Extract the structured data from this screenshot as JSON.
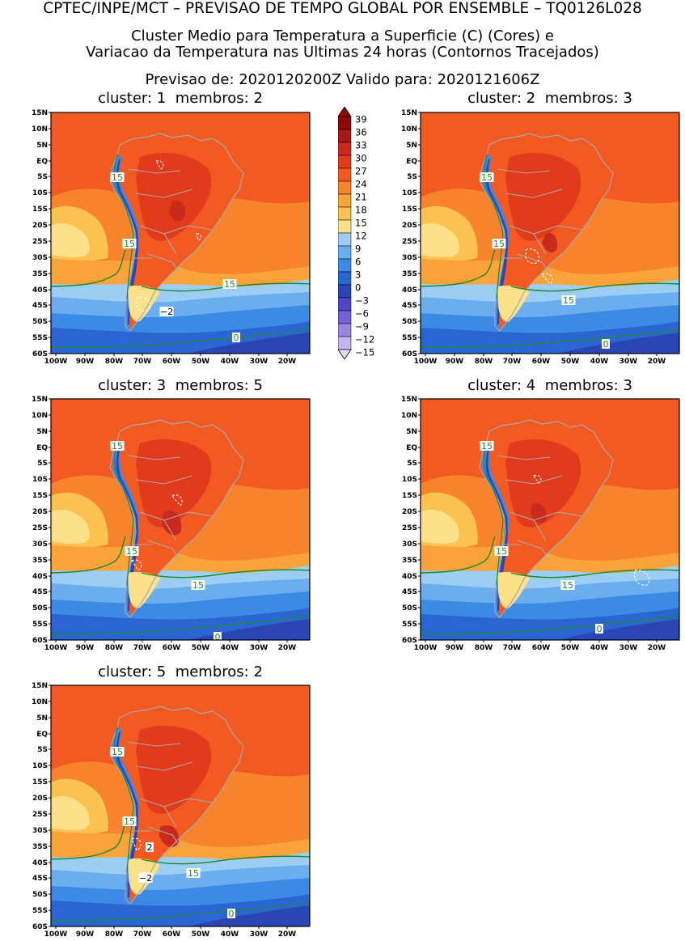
{
  "header": {
    "main_title": "CPTEC/INPE/MCT – PREVISAO DE TEMPO GLOBAL POR ENSEMBLE – TQ0126L028",
    "line1": "Cluster Medio para Temperatura a Superficie (C) (Cores) e",
    "line2": "Variacao da Temperatura nas Ultimas 24 horas (Contornos Tracejados)",
    "line3": "Previsao de: 2020120200Z    Valido para: 2020121606Z"
  },
  "axes": {
    "lat_labels": [
      "15N",
      "10N",
      "5N",
      "EQ",
      "5S",
      "10S",
      "15S",
      "20S",
      "25S",
      "30S",
      "35S",
      "40S",
      "45S",
      "50S",
      "55S",
      "60S"
    ],
    "lon_labels": [
      "100W",
      "90W",
      "80W",
      "70W",
      "60W",
      "50W",
      "40W",
      "30W",
      "20W"
    ]
  },
  "colorbar": {
    "labels": [
      "39",
      "36",
      "33",
      "30",
      "27",
      "24",
      "21",
      "18",
      "15",
      "12",
      "9",
      "6",
      "3",
      "0",
      "−3",
      "−6",
      "−9",
      "−12",
      "−15"
    ],
    "colors": [
      "#8c0a0a",
      "#a81818",
      "#c82a1e",
      "#e23b1c",
      "#f25a22",
      "#f7842c",
      "#f9a33a",
      "#fbc252",
      "#fde08a",
      "#9ccdf2",
      "#6aaef0",
      "#3d8ae6",
      "#2a66d2",
      "#2a46b4",
      "#4f46c8",
      "#7461d4",
      "#9a88e0",
      "#c2b6ee",
      "#e2dcf7"
    ]
  },
  "panels": [
    {
      "cluster_label": "cluster:",
      "cluster": "1",
      "members_label": "membros:",
      "members": "2",
      "contour_labels": [
        "15",
        "15",
        "15",
        "−2",
        "0"
      ]
    },
    {
      "cluster_label": "cluster:",
      "cluster": "2",
      "members_label": "membros:",
      "members": "3",
      "contour_labels": [
        "15",
        "15",
        "15",
        "0"
      ]
    },
    {
      "cluster_label": "cluster:",
      "cluster": "3",
      "members_label": "membros:",
      "members": "5",
      "contour_labels": [
        "15",
        "15",
        "15",
        "0"
      ]
    },
    {
      "cluster_label": "cluster:",
      "cluster": "4",
      "members_label": "membros:",
      "members": "3",
      "contour_labels": [
        "15",
        "15",
        "15",
        "0"
      ]
    },
    {
      "cluster_label": "cluster:",
      "cluster": "5",
      "members_label": "membros:",
      "members": "2",
      "contour_labels": [
        "15",
        "15",
        "2",
        "−2",
        "15",
        "0"
      ]
    }
  ]
}
